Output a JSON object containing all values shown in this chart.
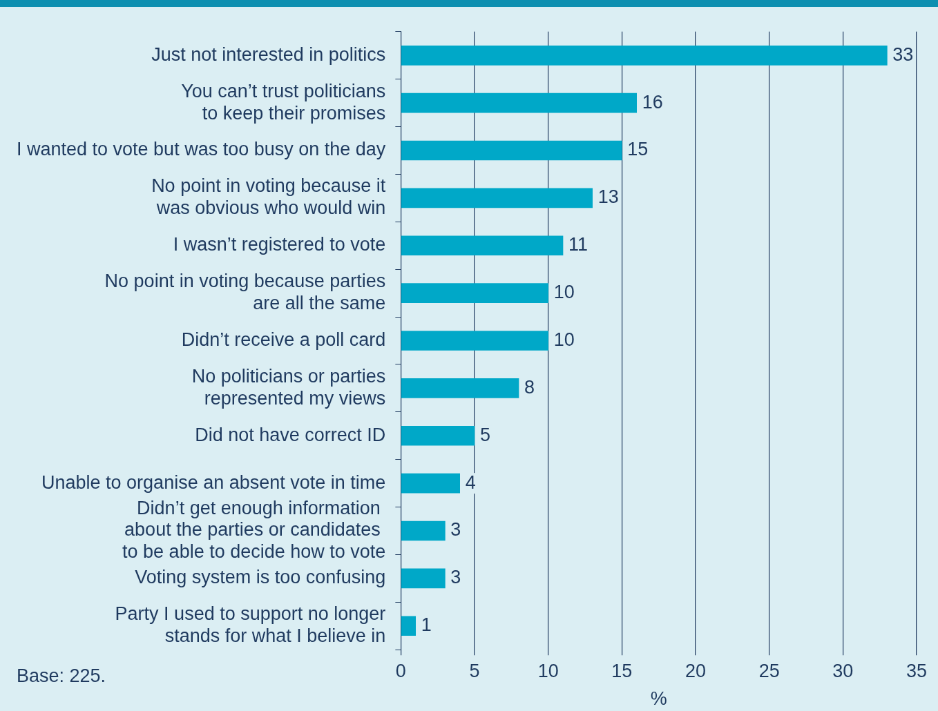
{
  "chart_data": {
    "type": "bar",
    "orientation": "horizontal",
    "categories": [
      "Just not interested in politics",
      "You can’t trust politicians\nto keep their promises",
      "I wanted to vote but was too busy on the day",
      "No point in voting because it\nwas obvious who would win",
      "I wasn’t registered to vote",
      "No point in voting because parties\nare all the same",
      "Didn’t receive a poll card",
      "No politicians or parties\nrepresented my views",
      "Did not have correct ID",
      "Unable to organise an absent vote in time",
      "Didn’t get enough information \nabout the parties or candidates \nto be able to decide how to vote",
      "Voting system is too confusing",
      "Party I used to support no longer\nstands for what I believe in"
    ],
    "values": [
      33,
      16,
      15,
      13,
      11,
      10,
      10,
      8,
      5,
      4,
      3,
      3,
      1
    ],
    "color": "#00a8c8",
    "data_labels": true,
    "xlim": [
      0,
      35
    ],
    "xticks": [
      0,
      5,
      10,
      15,
      20,
      25,
      30,
      35
    ],
    "xlabel": "%",
    "grid": "x",
    "annotations": [
      "Base: 225."
    ]
  }
}
